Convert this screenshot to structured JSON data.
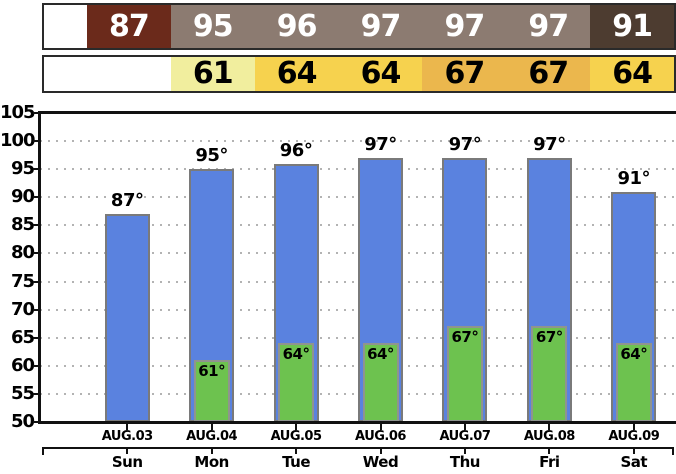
{
  "strips": {
    "high": {
      "cells": [
        {
          "value": "87",
          "bg": "#6B2A1B",
          "fg": "#FFFFFF"
        },
        {
          "value": "95",
          "bg": "#8C7B71",
          "fg": "#FFFFFF"
        },
        {
          "value": "96",
          "bg": "#8C7B71",
          "fg": "#FFFFFF"
        },
        {
          "value": "97",
          "bg": "#8C7B71",
          "fg": "#FFFFFF"
        },
        {
          "value": "97",
          "bg": "#8C7B71",
          "fg": "#FFFFFF"
        },
        {
          "value": "97",
          "bg": "#8C7B71",
          "fg": "#FFFFFF"
        },
        {
          "value": "91",
          "bg": "#4D3C30",
          "fg": "#FFFFFF"
        }
      ]
    },
    "low": {
      "cells": [
        {
          "value": "",
          "bg": "#FFFFFF",
          "fg": "#000000"
        },
        {
          "value": "61",
          "bg": "#F1EE9E",
          "fg": "#000000"
        },
        {
          "value": "64",
          "bg": "#F6D24E",
          "fg": "#000000"
        },
        {
          "value": "64",
          "bg": "#F6D24E",
          "fg": "#000000"
        },
        {
          "value": "67",
          "bg": "#EBB74D",
          "fg": "#000000"
        },
        {
          "value": "67",
          "bg": "#EBB74D",
          "fg": "#000000"
        },
        {
          "value": "64",
          "bg": "#F6D24E",
          "fg": "#000000"
        }
      ]
    }
  },
  "chart_data": {
    "type": "bar",
    "categories": [
      "Sun",
      "Mon",
      "Tue",
      "Wed",
      "Thu",
      "Fri",
      "Sat"
    ],
    "date_labels": [
      "AUG.03",
      "AUG.04",
      "AUG.05",
      "AUG.06",
      "AUG.07",
      "AUG.08",
      "AUG.09"
    ],
    "series": [
      {
        "name": "high",
        "color": "#5A82DF",
        "values": [
          87,
          95,
          96,
          97,
          97,
          97,
          91
        ],
        "value_labels": [
          "87°",
          "95°",
          "96°",
          "97°",
          "97°",
          "97°",
          "91°"
        ]
      },
      {
        "name": "low",
        "color": "#6DC24F",
        "values": [
          null,
          61,
          64,
          64,
          67,
          67,
          64
        ],
        "value_labels": [
          "",
          "61°",
          "64°",
          "64°",
          "67°",
          "67°",
          "64°"
        ]
      }
    ],
    "ylim": [
      50,
      105
    ],
    "yticks": [
      105,
      100,
      95,
      90,
      85,
      80,
      75,
      70,
      65,
      60,
      55,
      50
    ],
    "grid": "dotted-horizontal",
    "legend": "none",
    "title": "",
    "xlabel": "",
    "ylabel": ""
  }
}
